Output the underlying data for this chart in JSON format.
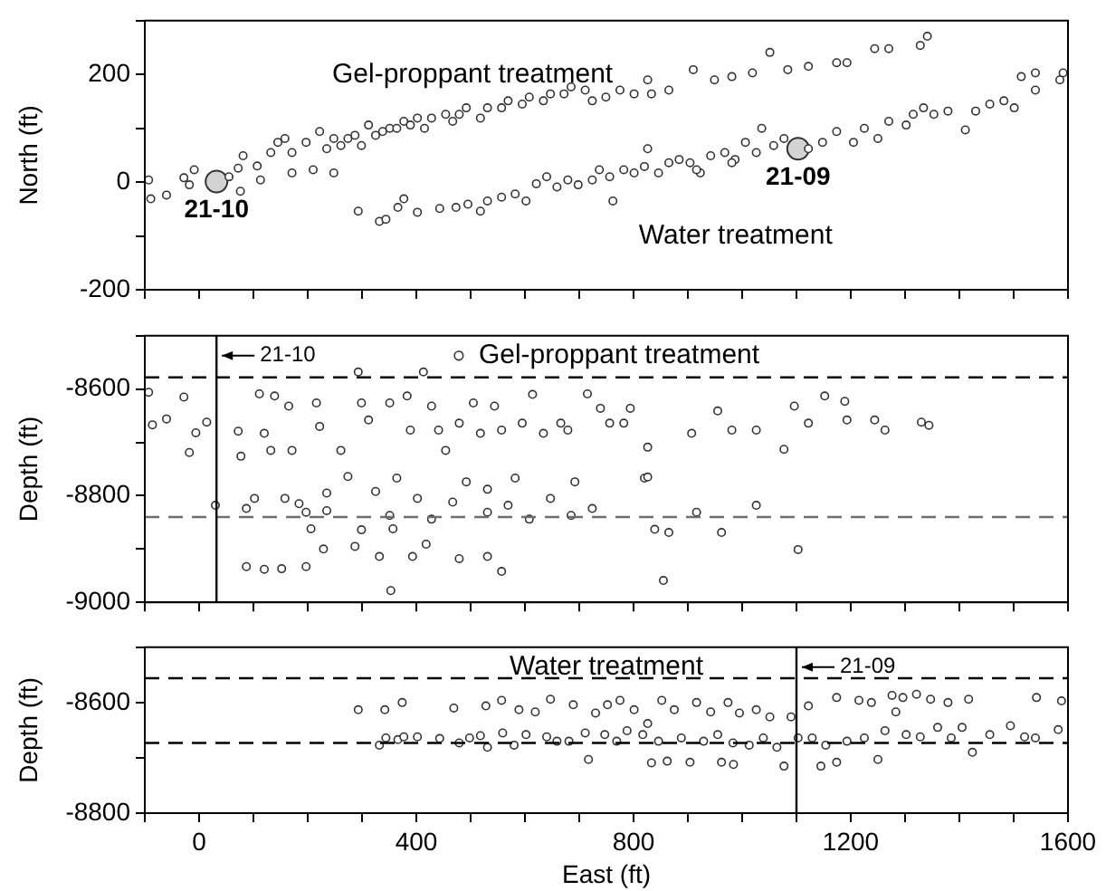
{
  "chart_data": [
    {
      "type": "scatter",
      "ylabel": "North (ft)",
      "xlim": [
        -100,
        1600
      ],
      "ylim": [
        -200,
        300
      ],
      "tick_labels": "y",
      "marker": "circle",
      "xticks": [
        {
          "value": -100,
          "label": null
        },
        0,
        {
          "value": 100,
          "label": null
        },
        {
          "value": 200,
          "label": null
        },
        {
          "value": 300,
          "label": null
        },
        400,
        {
          "value": 500,
          "label": null
        },
        {
          "value": 600,
          "label": null
        },
        {
          "value": 700,
          "label": null
        },
        800,
        {
          "value": 900,
          "label": null
        },
        {
          "value": 1000,
          "label": null
        },
        {
          "value": 1100,
          "label": null
        },
        1200,
        {
          "value": 1300,
          "label": null
        },
        {
          "value": 1400,
          "label": null
        },
        {
          "value": 1500,
          "label": null
        },
        1600
      ],
      "yticks": [
        -200,
        {
          "value": -100,
          "label": null
        },
        0,
        {
          "value": 100,
          "label": null
        },
        200,
        {
          "value": 300,
          "label": null
        }
      ],
      "series": [
        {
          "color": "#333333",
          "x": [
            -93,
            -89,
            -60,
            -28,
            -9,
            -18,
            76,
            72,
            81,
            107,
            113,
            132,
            145,
            158,
            171,
            197,
            210,
            222,
            235,
            248,
            261,
            274,
            287,
            299,
            312,
            325,
            338,
            351,
            364,
            377,
            389,
            402,
            415,
            428,
            454,
            467,
            479,
            492,
            518,
            531,
            557,
            569,
            595,
            608,
            634,
            647,
            672,
            685,
            711,
            724,
            749,
            775,
            801,
            826,
            833,
            865,
            910,
            949,
            981,
            1019,
            1051,
            1084,
            1122,
            1174,
            1193,
            1244,
            1270,
            1328,
            1341,
            55,
            171,
            248
          ],
          "values": [
            4,
            -31,
            -24,
            8,
            23,
            -5,
            -17,
            26,
            49,
            30,
            4,
            55,
            74,
            81,
            55,
            74,
            23,
            94,
            62,
            81,
            68,
            81,
            87,
            68,
            106,
            87,
            94,
            100,
            100,
            113,
            106,
            119,
            100,
            119,
            126,
            113,
            126,
            138,
            119,
            138,
            138,
            151,
            145,
            158,
            151,
            164,
            164,
            177,
            171,
            151,
            158,
            171,
            164,
            190,
            164,
            171,
            209,
            190,
            196,
            203,
            241,
            209,
            215,
            222,
            222,
            248,
            248,
            254,
            271,
            10,
            17,
            17
          ]
        },
        {
          "color": "#333333",
          "x": [
            293,
            332,
            344,
            366,
            377,
            402,
            443,
            473,
            495,
            518,
            531,
            557,
            582,
            602,
            621,
            640,
            659,
            679,
            698,
            724,
            737,
            756,
            762,
            782,
            801,
            820,
            826,
            846,
            865,
            884,
            904,
            923,
            942,
            968,
            987,
            1006,
            1026,
            1036,
            1058,
            1077,
            1122,
            1148,
            1174,
            1205,
            1225,
            1250,
            1270,
            1302,
            1315,
            1334,
            1353,
            1379,
            1411,
            1430,
            1456,
            1482,
            1501,
            1514,
            1540,
            1540,
            1585,
            1591,
            916,
            981
          ],
          "values": [
            -54,
            -73,
            -69,
            -47,
            -31,
            -56,
            -49,
            -47,
            -41,
            -54,
            -35,
            -28,
            -22,
            -35,
            -3,
            10,
            -9,
            4,
            -5,
            4,
            23,
            10,
            -35,
            23,
            17,
            29,
            62,
            17,
            36,
            42,
            36,
            17,
            49,
            55,
            42,
            74,
            55,
            100,
            68,
            81,
            62,
            74,
            94,
            74,
            100,
            81,
            113,
            106,
            126,
            138,
            126,
            132,
            97,
            132,
            145,
            151,
            138,
            196,
            203,
            171,
            190,
            203,
            23,
            36
          ]
        },
        {
          "color": "#d3d3d3",
          "x": [
            32,
            1103
          ],
          "values": [
            1,
            62
          ],
          "value_labels": [
            "21-10",
            "21-09"
          ]
        }
      ],
      "annotations": [
        "Gel-proppant treatment",
        "Water treatment"
      ]
    },
    {
      "type": "scatter",
      "ylabel": "Depth (ft)",
      "xlim": [
        -100,
        1600
      ],
      "ylim": [
        -9000,
        -8500
      ],
      "tick_labels": "y",
      "marker": "circle",
      "legend": "top",
      "xticks": [
        {
          "value": -100,
          "label": null
        },
        0,
        {
          "value": 100,
          "label": null
        },
        {
          "value": 200,
          "label": null
        },
        {
          "value": 300,
          "label": null
        },
        400,
        {
          "value": 500,
          "label": null
        },
        {
          "value": 600,
          "label": null
        },
        {
          "value": 700,
          "label": null
        },
        800,
        {
          "value": 900,
          "label": null
        },
        {
          "value": 1000,
          "label": null
        },
        {
          "value": 1100,
          "label": null
        },
        1200,
        {
          "value": 1300,
          "label": null
        },
        {
          "value": 1400,
          "label": null
        },
        {
          "value": 1500,
          "label": null
        },
        1600
      ],
      "yticks": [
        -9000,
        {
          "value": -8900,
          "label": null
        },
        -8800,
        {
          "value": -8700,
          "label": null
        },
        -8600,
        {
          "value": -8500,
          "label": null
        }
      ],
      "series": [
        {
          "name": "Gel-proppant treatment",
          "color": "#333333",
          "x": [
            -93,
            -86,
            -60,
            -28,
            -18,
            -6,
            14,
            30,
            72,
            77,
            87,
            102,
            111,
            120,
            132,
            139,
            158,
            165,
            171,
            184,
            216,
            222,
            235,
            261,
            274,
            293,
            299,
            312,
            325,
            351,
            364,
            383,
            389,
            402,
            413,
            428,
            441,
            454,
            467,
            479,
            492,
            505,
            518,
            531,
            544,
            557,
            569,
            582,
            595,
            614,
            634,
            647,
            666,
            679,
            692,
            715,
            724,
            739,
            756,
            782,
            794,
            820,
            826,
            839,
            855,
            865,
            907,
            955,
            962,
            981,
            1026,
            1026,
            1077,
            1096,
            1103,
            1122,
            1152,
            1189,
            1193,
            1244,
            1263,
            1330,
            1344,
            87,
            120,
            152,
            197,
            229,
            287,
            332,
            353,
            393,
            418,
            479,
            531,
            557,
            206,
            299,
            357,
            826,
            916,
            235,
            351,
            428,
            608,
            685,
            531,
            197
          ],
          "values": [
            -8606,
            -8667,
            -8656,
            -8615,
            -8719,
            -8682,
            -8662,
            -8818,
            -8679,
            -8726,
            -8824,
            -8805,
            -8609,
            -8683,
            -8715,
            -8613,
            -8805,
            -8632,
            -8715,
            -8815,
            -8626,
            -8670,
            -8795,
            -8715,
            -8764,
            -8568,
            -8626,
            -8658,
            -8792,
            -8626,
            -8767,
            -8613,
            -8677,
            -8805,
            -8568,
            -8632,
            -8677,
            -8715,
            -8812,
            -8664,
            -8774,
            -8626,
            -8683,
            -8831,
            -8632,
            -8677,
            -8818,
            -8767,
            -8664,
            -8610,
            -8683,
            -8805,
            -8664,
            -8677,
            -8774,
            -8609,
            -8824,
            -8636,
            -8664,
            -8664,
            -8636,
            -8767,
            -8709,
            -8863,
            -8959,
            -8869,
            -8683,
            -8641,
            -8869,
            -8677,
            -8818,
            -8677,
            -8713,
            -8632,
            -8901,
            -8664,
            -8613,
            -8623,
            -8658,
            -8658,
            -8677,
            -8662,
            -8668,
            -8933,
            -8938,
            -8937,
            -8933,
            -8900,
            -8895,
            -8914,
            -8978,
            -8914,
            -8891,
            -8918,
            -8914,
            -8942,
            -8862,
            -8864,
            -8862,
            -8765,
            -8831,
            -8828,
            -8837,
            -8844,
            -8844,
            -8837,
            -8788,
            -8831
          ]
        }
      ],
      "ref_lines": [
        {
          "axis": "y",
          "value": -8578,
          "color": "#000000",
          "line_style": "dashed"
        },
        {
          "axis": "y",
          "value": -8840,
          "color": "#6e6e6e",
          "line_style": "dashed"
        },
        {
          "axis": "x",
          "value": 32,
          "color": "#000000",
          "line_style": "solid"
        }
      ],
      "annotations": [
        {
          "text": "21-10",
          "x": 32
        }
      ]
    },
    {
      "type": "scatter",
      "ylabel": "Depth (ft)",
      "xlabel": "East (ft)",
      "xlim": [
        -100,
        1600
      ],
      "ylim": [
        -8800,
        -8500
      ],
      "marker": "circle",
      "xticks": [
        {
          "value": -100,
          "label": null
        },
        0,
        {
          "value": 100,
          "label": null
        },
        {
          "value": 200,
          "label": null
        },
        {
          "value": 300,
          "label": null
        },
        400,
        {
          "value": 500,
          "label": null
        },
        {
          "value": 600,
          "label": null
        },
        {
          "value": 700,
          "label": null
        },
        800,
        {
          "value": 900,
          "label": null
        },
        {
          "value": 1000,
          "label": null
        },
        {
          "value": 1100,
          "label": null
        },
        1200,
        {
          "value": 1300,
          "label": null
        },
        {
          "value": 1400,
          "label": null
        },
        {
          "value": 1500,
          "label": null
        },
        1600
      ],
      "yticks": [
        -8800,
        {
          "value": -8700,
          "label": null
        },
        -8600,
        {
          "value": -8500,
          "label": null
        }
      ],
      "series": [
        {
          "color": "#333333",
          "x": [
            293,
            342,
            374,
            332,
            344,
            366,
            377,
            402,
            443,
            469,
            479,
            498,
            518,
            528,
            531,
            557,
            559,
            580,
            589,
            602,
            619,
            640,
            647,
            659,
            681,
            689,
            711,
            717,
            730,
            747,
            752,
            769,
            775,
            788,
            801,
            817,
            826,
            833,
            846,
            852,
            862,
            875,
            888,
            904,
            916,
            929,
            942,
            955,
            962,
            974,
            984,
            983,
            995,
            1013,
            1026,
            1039,
            1051,
            1064,
            1077,
            1090,
            1103,
            1122,
            1129,
            1145,
            1154,
            1174,
            1174,
            1193,
            1215,
            1225,
            1238,
            1250,
            1263,
            1276,
            1283,
            1296,
            1302,
            1321,
            1328,
            1347,
            1360,
            1379,
            1385,
            1405,
            1417,
            1424,
            1456,
            1494,
            1520,
            1540,
            1542,
            1582,
            1588
          ],
          "values": [
            -8613,
            -8613,
            -8600,
            -8677,
            -8664,
            -8667,
            -8662,
            -8662,
            -8665,
            -8610,
            -8673,
            -8664,
            -8660,
            -8606,
            -8681,
            -8596,
            -8655,
            -8677,
            -8613,
            -8658,
            -8617,
            -8662,
            -8594,
            -8670,
            -8670,
            -8604,
            -8655,
            -8703,
            -8619,
            -8658,
            -8604,
            -8670,
            -8596,
            -8651,
            -8613,
            -8658,
            -8638,
            -8709,
            -8670,
            -8596,
            -8706,
            -8613,
            -8664,
            -8708,
            -8600,
            -8670,
            -8617,
            -8658,
            -8708,
            -8600,
            -8712,
            -8673,
            -8619,
            -8677,
            -8613,
            -8664,
            -8626,
            -8681,
            -8715,
            -8626,
            -8664,
            -8606,
            -8664,
            -8715,
            -8677,
            -8591,
            -8708,
            -8670,
            -8596,
            -8664,
            -8600,
            -8703,
            -8651,
            -8587,
            -8617,
            -8591,
            -8658,
            -8585,
            -8662,
            -8594,
            -8645,
            -8600,
            -8664,
            -8645,
            -8594,
            -8690,
            -8658,
            -8642,
            -8662,
            -8664,
            -8591,
            -8649,
            -8597
          ]
        }
      ],
      "ref_lines": [
        {
          "axis": "y",
          "value": -8556,
          "color": "#000000",
          "line_style": "dashed"
        },
        {
          "axis": "y",
          "value": -8673,
          "color": "#000000",
          "line_style": "dashed"
        },
        {
          "axis": "x",
          "value": 1100,
          "color": "#000000",
          "line_style": "solid"
        }
      ],
      "annotations": [
        "Water treatment",
        {
          "text": "21-09",
          "x": 1100
        }
      ]
    }
  ]
}
